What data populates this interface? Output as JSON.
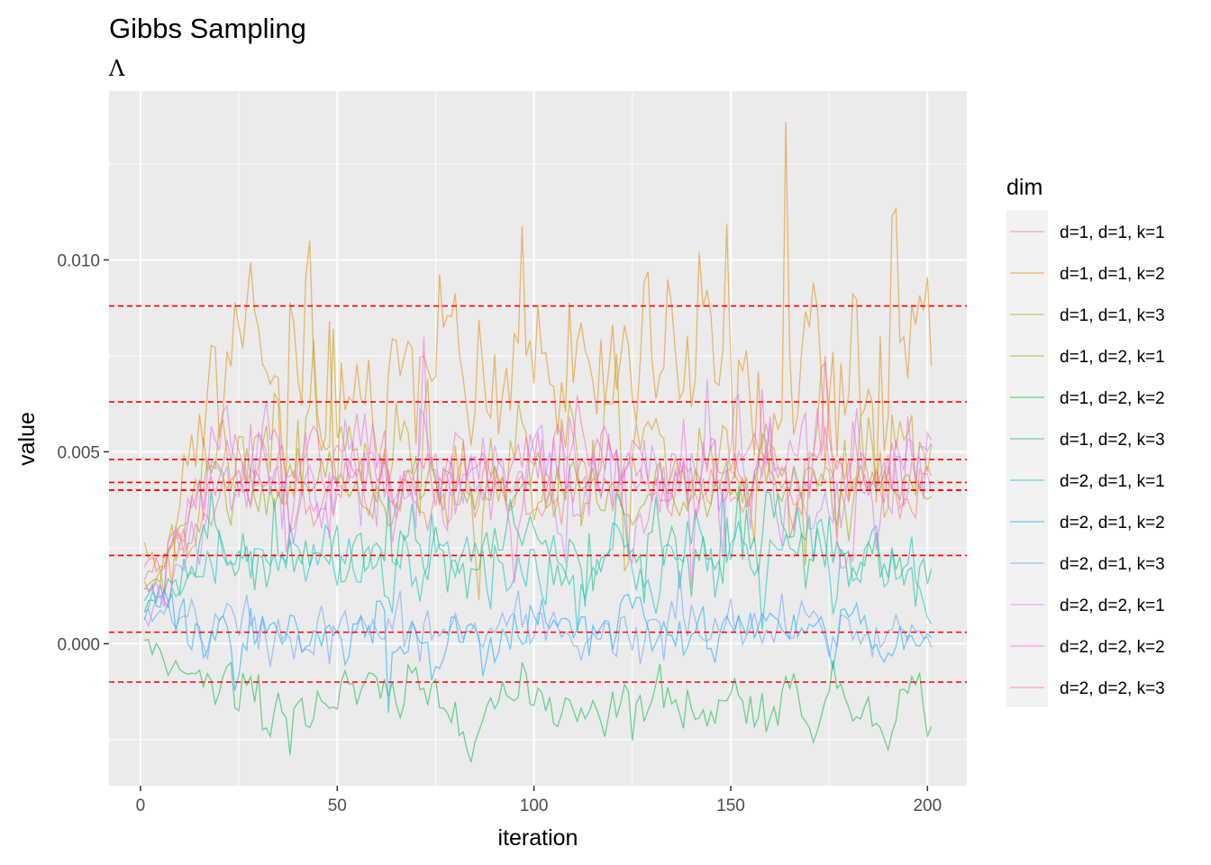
{
  "chart_data": {
    "type": "line",
    "title": "Gibbs Sampling",
    "subtitle": "Λ",
    "xlabel": "iteration",
    "ylabel": "value",
    "xlim": [
      -8,
      210
    ],
    "ylim": [
      -0.0037,
      0.0144
    ],
    "x_ticks": [
      0,
      50,
      100,
      150,
      200
    ],
    "x_tick_labels": [
      "0",
      "50",
      "100",
      "150",
      "200"
    ],
    "y_ticks": [
      0.0,
      0.005,
      0.01
    ],
    "y_tick_labels": [
      "0.000",
      "0.005",
      "0.010"
    ],
    "grid": true,
    "legend": {
      "title": "dim",
      "position": "right"
    },
    "n_iterations": 201,
    "reference_lines": [
      0.0088,
      0.0063,
      0.0048,
      0.0042,
      0.004,
      0.004,
      0.004,
      0.0023,
      0.0003,
      -0.001
    ],
    "reference_line_color": "#ff0000",
    "series": [
      {
        "name": "d=1, d=1, k=1",
        "color": "#F8766D",
        "mean": 0.004,
        "sd": 0.0004,
        "start": 0.0017,
        "peak": 0.0052
      },
      {
        "name": "d=1, d=1, k=2",
        "color": "#E38900",
        "mean": 0.0071,
        "sd": 0.0012,
        "start": 0.002,
        "peak": 0.0136
      },
      {
        "name": "d=1, d=1, k=3",
        "color": "#C49A00",
        "mean": 0.0048,
        "sd": 0.0009,
        "start": 0.0015,
        "peak": 0.0082
      },
      {
        "name": "d=1, d=2, k=1",
        "color": "#99A800",
        "mean": 0.004,
        "sd": 0.0004,
        "start": 0.0016,
        "peak": 0.0051
      },
      {
        "name": "d=1, d=2, k=2",
        "color": "#00BA38",
        "mean": -0.0015,
        "sd": 0.0004,
        "start": 0.0,
        "peak": -0.0029
      },
      {
        "name": "d=1, d=2, k=3",
        "color": "#00BF7D",
        "mean": 0.0023,
        "sd": 0.0006,
        "start": 0.0008,
        "peak": 0.0041
      },
      {
        "name": "d=2, d=1, k=1",
        "color": "#00BFC4",
        "mean": 0.0022,
        "sd": 0.0006,
        "start": 0.001,
        "peak": 0.004
      },
      {
        "name": "d=2, d=1, k=2",
        "color": "#00A9FF",
        "mean": 0.0003,
        "sd": 0.0004,
        "start": 0.0012,
        "peak": -0.0018
      },
      {
        "name": "d=2, d=1, k=3",
        "color": "#619CFF",
        "mean": 0.0003,
        "sd": 0.0004,
        "start": 0.001,
        "peak": 0.0019
      },
      {
        "name": "d=2, d=2, k=1",
        "color": "#C77CFF",
        "mean": 0.0042,
        "sd": 0.0007,
        "start": 0.0005,
        "peak": 0.0069
      },
      {
        "name": "d=2, d=2, k=2",
        "color": "#F564E3",
        "mean": 0.0045,
        "sd": 0.0008,
        "start": 0.001,
        "peak": 0.008
      },
      {
        "name": "d=2, d=2, k=3",
        "color": "#FF64B0",
        "mean": 0.0045,
        "sd": 0.0005,
        "start": 0.002,
        "peak": 0.0075
      }
    ]
  }
}
